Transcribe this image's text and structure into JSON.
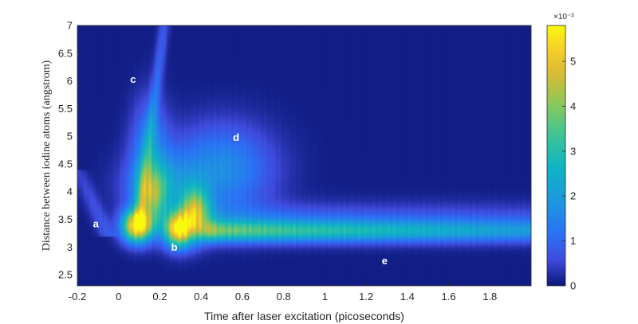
{
  "chart_data": {
    "type": "heatmap",
    "title": "",
    "xlabel": "Time after laser excitation (picoseconds)",
    "ylabel": "Distance between iodine atoms (angstrom)",
    "xlim": [
      -0.2,
      2.0
    ],
    "ylim": [
      2.3,
      7.0
    ],
    "xticks": [
      -0.2,
      0,
      0.2,
      0.4,
      0.6,
      0.8,
      1,
      1.2,
      1.4,
      1.6,
      1.8
    ],
    "xtick_labels": [
      "-0.2",
      "0",
      "0.2",
      "0.4",
      "0.6",
      "0.8",
      "1",
      "1.2",
      "1.4",
      "1.6",
      "1.8"
    ],
    "yticks": [
      2.5,
      3,
      3.5,
      4,
      4.5,
      5,
      5.5,
      6,
      6.5,
      7
    ],
    "ytick_labels": [
      "2.5",
      "3",
      "3.5",
      "4",
      "4.5",
      "5",
      "5.5",
      "6",
      "6.5",
      "7"
    ],
    "colormap": "parula",
    "colorbar": {
      "min": 0,
      "max": 0.0058,
      "ticks": [
        0,
        1,
        2,
        3,
        4,
        5
      ],
      "tick_labels": [
        "0",
        "1",
        "2",
        "3",
        "4",
        "5"
      ],
      "exponent_label": "×10⁻³"
    },
    "annotations": [
      {
        "text": "a",
        "x": -0.11,
        "y": 3.42
      },
      {
        "text": "b",
        "x": 0.27,
        "y": 3.0
      },
      {
        "text": "c",
        "x": 0.07,
        "y": 6.03
      },
      {
        "text": "d",
        "x": 0.57,
        "y": 4.98
      },
      {
        "text": "e",
        "x": 1.29,
        "y": 2.75
      }
    ],
    "features": [
      {
        "kind": "blob",
        "x": 0.09,
        "y": 3.38,
        "sx": 0.05,
        "sy": 0.2,
        "value": 0.0058
      },
      {
        "kind": "blob",
        "x": 0.29,
        "y": 3.32,
        "sx": 0.05,
        "sy": 0.22,
        "value": 0.0054
      },
      {
        "kind": "blob",
        "x": 0.37,
        "y": 3.62,
        "sx": 0.05,
        "sy": 0.3,
        "value": 0.0038
      },
      {
        "kind": "blob",
        "x": 0.16,
        "y": 3.9,
        "sx": 0.05,
        "sy": 0.35,
        "value": 0.0026
      },
      {
        "kind": "blob",
        "x": 0.5,
        "y": 4.4,
        "sx": 0.17,
        "sy": 0.55,
        "value": 0.0016
      },
      {
        "kind": "blob",
        "x": 0.15,
        "y": 4.8,
        "sx": 0.06,
        "sy": 0.6,
        "value": 0.0014
      },
      {
        "kind": "blob",
        "x": 0.2,
        "y": 4.1,
        "sx": 0.12,
        "sy": 0.4,
        "value": 0.0014
      },
      {
        "kind": "band",
        "x0": 0.4,
        "x1": 1.95,
        "y": 3.28,
        "sy": 0.13,
        "v0": 0.0028,
        "v1": 0.0014
      },
      {
        "kind": "band",
        "x0": 0.4,
        "x1": 1.95,
        "y": 3.45,
        "sy": 0.22,
        "v0": 0.0011,
        "v1": 0.0007
      },
      {
        "kind": "streak",
        "x0": 0.1,
        "y0": 3.5,
        "x1": 0.22,
        "y1": 7.0,
        "sx": 0.018,
        "value": 0.0014
      },
      {
        "kind": "streak",
        "x0": -0.05,
        "y0": 3.2,
        "x1": -0.2,
        "y1": 4.4,
        "sx": 0.03,
        "value": 0.0007
      }
    ]
  }
}
